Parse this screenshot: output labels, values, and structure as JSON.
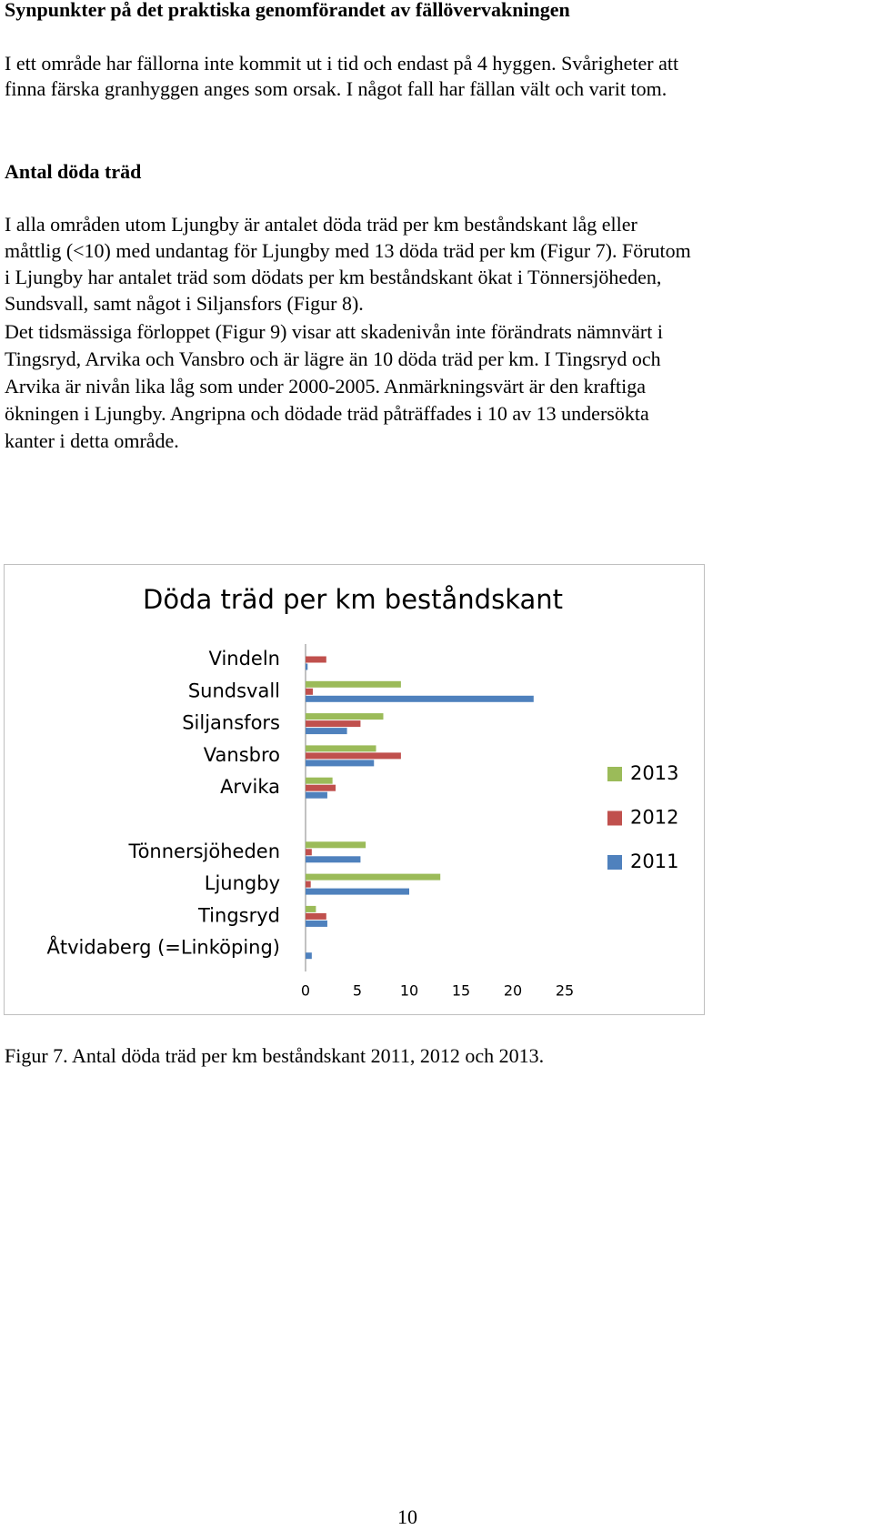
{
  "heading1": "Synpunkter på det praktiska genomförandet av fällövervakningen",
  "paragraph1": [
    "I ett område har fällorna inte kommit ut i tid och endast på 4 hyggen. Svårigheter att",
    "finna färska granhyggen anges som orsak. I något fall har fällan vält och varit tom."
  ],
  "heading2": "Antal döda träd",
  "paragraph2": [
    "I alla områden utom Ljungby är antalet döda träd per km beståndskant låg eller",
    "måttlig (<10) med undantag för Ljungby med 13 döda träd per km (Figur 7). Förutom",
    "i Ljungby har antalet träd som dödats per km beståndskant ökat i Tönnersjöheden,",
    "Sundsvall, samt något i Siljansfors (Figur 8)."
  ],
  "paragraph3": [
    "Det tidsmässiga förloppet (Figur 9) visar att skadenivån inte förändrats nämnvärt i",
    "Tingsryd, Arvika och Vansbro och är lägre än 10 döda träd per km. I Tingsryd och",
    "Arvika är nivån lika låg som under 2000-2005.  Anmärkningsvärt är den kraftiga",
    "ökningen i Ljungby. Angripna och dödade träd påträffades i 10 av 13 undersökta",
    "kanter i detta område."
  ],
  "chart_data": {
    "type": "hbar",
    "title": "Döda träd per km beståndskant",
    "categories": [
      "Vindeln",
      "Sundsvall",
      "Siljansfors",
      "Vansbro",
      "Arvika",
      null,
      "Tönnersjöheden",
      "Ljungby",
      "Tingsryd",
      "Åtvidaberg (=Linköping)"
    ],
    "series": [
      {
        "name": "2011",
        "color": "#4f81bd",
        "values": [
          0.2,
          22,
          4,
          6.6,
          2.1,
          null,
          5.3,
          10,
          2.1,
          0.6
        ]
      },
      {
        "name": "2012",
        "color": "#c0504d",
        "values": [
          2,
          0.7,
          5.3,
          9.2,
          2.9,
          null,
          0.6,
          0.5,
          2,
          0
        ]
      },
      {
        "name": "2013",
        "color": "#9bbb59",
        "values": [
          0,
          9.2,
          7.5,
          6.8,
          2.6,
          null,
          5.8,
          13,
          1,
          0
        ]
      }
    ],
    "xlim": [
      0,
      25
    ],
    "xticks": [
      0,
      5,
      10,
      15,
      20,
      25
    ],
    "grid": false,
    "legend": "right"
  },
  "caption": "Figur 7. Antal döda träd per km beståndskant 2011, 2012 och 2013.",
  "page_number": "10"
}
